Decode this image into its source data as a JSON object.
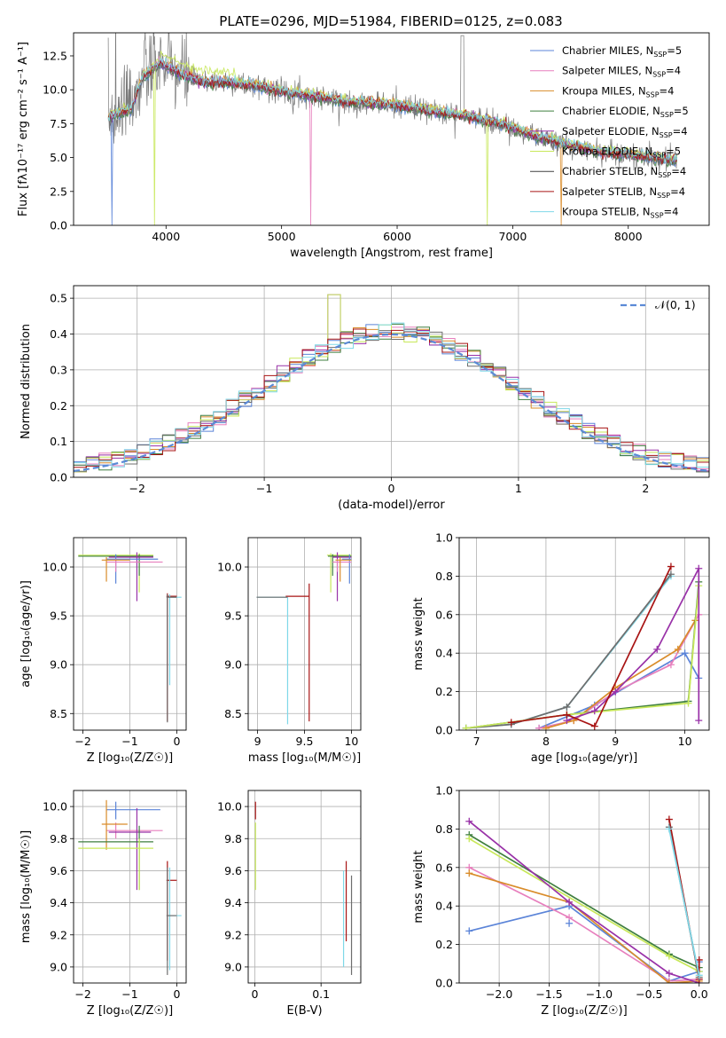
{
  "figure": {
    "title": "PLATE=0296, MJD=51984, FIBERID=0125, z=0.083"
  },
  "colors": {
    "chabrier_miles": "#5b84d8",
    "salpeter_miles": "#e77fbd",
    "kroupa_miles": "#d98c2a",
    "chabrier_elodie": "#3f7f3f",
    "salpeter_elodie": "#9932a8",
    "kroupa_elodie": "#c8e85a",
    "chabrier_stelib": "#6e6e6e",
    "salpeter_stelib": "#a81414",
    "kroupa_stelib": "#7fd8e8",
    "normal_curve": "#5b8ad6",
    "grid": "#b0b0b0",
    "data": "#808080"
  },
  "legend": [
    {
      "name": "Chabrier MILES, N",
      "sub": "SSP",
      "tail": "=5",
      "color": "#5b84d8"
    },
    {
      "name": "Salpeter MILES, N",
      "sub": "SSP",
      "tail": "=4",
      "color": "#e77fbd"
    },
    {
      "name": "Kroupa MILES, N",
      "sub": "SSP",
      "tail": "=4",
      "color": "#d98c2a"
    },
    {
      "name": "Chabrier ELODIE, N",
      "sub": "SSP",
      "tail": "=5",
      "color": "#3f7f3f"
    },
    {
      "name": "Salpeter ELODIE, N",
      "sub": "SSP",
      "tail": "=4",
      "color": "#9932a8"
    },
    {
      "name": "Kroupa ELODIE, N",
      "sub": "SSP",
      "tail": "=5",
      "color": "#c8e85a"
    },
    {
      "name": "Chabrier STELIB, N",
      "sub": "SSP",
      "tail": "=4",
      "color": "#404040"
    },
    {
      "name": "Salpeter STELIB, N",
      "sub": "SSP",
      "tail": "=4",
      "color": "#a81414"
    },
    {
      "name": "Kroupa STELIB, N",
      "sub": "SSP",
      "tail": "=4",
      "color": "#7fd8e8"
    }
  ],
  "chart_data": [
    {
      "id": "spectrum",
      "type": "line",
      "xlabel": "wavelength [Angstrom, rest frame]",
      "ylabel": "Flux [fλ10⁻¹⁷ erg cm⁻² s⁻¹ A⁻¹]",
      "xlim": [
        3200,
        8700
      ],
      "ylim": [
        0,
        14.2
      ],
      "xticks": [
        4000,
        5000,
        6000,
        7000,
        8000
      ],
      "yticks": [
        0.0,
        2.5,
        5.0,
        7.5,
        10.0,
        12.5
      ],
      "ytick_labels": [
        "0.0",
        "2.5",
        "5.0",
        "7.5",
        "10.0",
        "12.5"
      ],
      "grid": false,
      "legend_position": "upper-right",
      "continuum": [
        [
          3500,
          8.0
        ],
        [
          3700,
          8.6
        ],
        [
          3800,
          11.0
        ],
        [
          3950,
          12.0
        ],
        [
          4100,
          11.3
        ],
        [
          4300,
          10.6
        ],
        [
          4500,
          10.6
        ],
        [
          4800,
          10.3
        ],
        [
          5000,
          9.9
        ],
        [
          5300,
          9.5
        ],
        [
          5600,
          9.1
        ],
        [
          6000,
          8.9
        ],
        [
          6300,
          8.4
        ],
        [
          6600,
          8.1
        ],
        [
          6900,
          7.5
        ],
        [
          7200,
          6.6
        ],
        [
          7500,
          5.9
        ],
        [
          7800,
          5.4
        ],
        [
          8100,
          5.1
        ],
        [
          8400,
          4.8
        ]
      ]
    },
    {
      "id": "residuals",
      "type": "histogram",
      "xlabel": "(data-model)/error",
      "ylabel": "Normed distribution",
      "xlim": [
        -2.5,
        2.5
      ],
      "ylim": [
        0,
        0.535
      ],
      "xticks": [
        -2,
        -1,
        0,
        1,
        2
      ],
      "yticks": [
        0.0,
        0.1,
        0.2,
        0.3,
        0.4,
        0.5
      ],
      "ytick_labels": [
        "0.0",
        "0.1",
        "0.2",
        "0.3",
        "0.4",
        "0.5"
      ],
      "grid": true,
      "legend_position": "upper-right",
      "legend_label": "𝒩(0, 1)",
      "bin_width": 0.1,
      "normal": {
        "mean": 0,
        "sigma": 1
      }
    },
    {
      "id": "age_vs_Z",
      "type": "errorbar",
      "xlabel": "Z [log₁₀(Z/Z☉)]",
      "ylabel": "age  [log₁₀(age/yr)]",
      "xlim": [
        -2.2,
        0.2
      ],
      "ylim": [
        8.33,
        10.3
      ],
      "xticks": [
        -2,
        -1,
        0
      ],
      "yticks": [
        8.5,
        9.0,
        9.5,
        10.0
      ],
      "ytick_labels": [
        "8.5",
        "9.0",
        "9.5",
        "10.0"
      ],
      "grid": true,
      "points": [
        {
          "color": "#c8e85a",
          "x": -0.8,
          "y": 10.12,
          "xerr": [
            1.3,
            0.3
          ],
          "yerr": [
            0.38,
            0.02
          ]
        },
        {
          "color": "#3f7f3f",
          "x": -0.8,
          "y": 10.11,
          "xerr": [
            1.3,
            0.3
          ],
          "yerr": [
            0.2,
            0.02
          ]
        },
        {
          "color": "#9932a8",
          "x": -0.85,
          "y": 10.1,
          "xerr": [
            0.6,
            0.35
          ],
          "yerr": [
            0.45,
            0.05
          ]
        },
        {
          "color": "#5b84d8",
          "x": -1.3,
          "y": 10.08,
          "xerr": [
            0.2,
            0.9
          ],
          "yerr": [
            0.25,
            0.05
          ]
        },
        {
          "color": "#e77fbd",
          "x": -1.3,
          "y": 10.05,
          "xerr": [
            0.2,
            1.0
          ],
          "yerr": [
            0.1,
            0.03
          ]
        },
        {
          "color": "#d98c2a",
          "x": -1.5,
          "y": 10.07,
          "xerr": [
            0.1,
            0.5
          ],
          "yerr": [
            0.22,
            0.03
          ]
        },
        {
          "color": "#a81414",
          "x": -0.2,
          "y": 9.7,
          "xerr": [
            0.02,
            0.2
          ],
          "yerr": [
            1.28,
            0.03
          ]
        },
        {
          "color": "#7fd8e8",
          "x": -0.15,
          "y": 9.69,
          "xerr": [
            0.05,
            0.25
          ],
          "yerr": [
            0.9,
            0.03
          ]
        },
        {
          "color": "#6e6e6e",
          "x": -0.2,
          "y": 9.69,
          "xerr": [
            0.02,
            0.2
          ],
          "yerr": [
            1.28,
            0.03
          ]
        }
      ]
    },
    {
      "id": "age_vs_mass",
      "type": "errorbar",
      "xlabel": "mass [log₁₀(M/M☉)]",
      "ylabel": "",
      "xlim": [
        8.9,
        10.1
      ],
      "ylim": [
        8.33,
        10.3
      ],
      "xticks": [
        9.0,
        9.5,
        10.0
      ],
      "yticks": [
        8.5,
        9.0,
        9.5,
        10.0
      ],
      "ytick_labels": [
        "8.5",
        "9.0",
        "9.5",
        "10.0"
      ],
      "grid": true,
      "points": [
        {
          "color": "#c8e85a",
          "x": 9.78,
          "y": 10.12,
          "xerr": [
            0.04,
            0.22
          ],
          "yerr": [
            0.38,
            0.02
          ]
        },
        {
          "color": "#3f7f3f",
          "x": 9.8,
          "y": 10.11,
          "xerr": [
            0.05,
            0.2
          ],
          "yerr": [
            0.2,
            0.02
          ]
        },
        {
          "color": "#9932a8",
          "x": 9.85,
          "y": 10.1,
          "xerr": [
            0.05,
            0.15
          ],
          "yerr": [
            0.45,
            0.05
          ]
        },
        {
          "color": "#5b84d8",
          "x": 9.98,
          "y": 10.08,
          "xerr": [
            0.08,
            0.02
          ],
          "yerr": [
            0.25,
            0.05
          ]
        },
        {
          "color": "#e77fbd",
          "x": 9.85,
          "y": 10.05,
          "xerr": [
            0.05,
            0.15
          ],
          "yerr": [
            0.1,
            0.03
          ]
        },
        {
          "color": "#d98c2a",
          "x": 9.88,
          "y": 10.07,
          "xerr": [
            0.05,
            0.12
          ],
          "yerr": [
            0.22,
            0.03
          ]
        },
        {
          "color": "#a81414",
          "x": 9.55,
          "y": 9.7,
          "xerr": [
            0.25,
            0.0
          ],
          "yerr": [
            1.28,
            0.13
          ]
        },
        {
          "color": "#7fd8e8",
          "x": 9.32,
          "y": 9.69,
          "xerr": [
            0.33,
            0.0
          ],
          "yerr": [
            1.3,
            0.0
          ]
        },
        {
          "color": "#6e6e6e",
          "x": 9.32,
          "y": 9.69,
          "xerr": [
            0.33,
            0.0
          ],
          "yerr": [
            0.0,
            0.0
          ]
        }
      ]
    },
    {
      "id": "massweight_vs_age",
      "type": "line",
      "xlabel": "age  [log₁₀(age/yr)]",
      "ylabel": "mass weight",
      "xlim": [
        6.75,
        10.35
      ],
      "ylim": [
        0,
        1.0
      ],
      "xticks": [
        7,
        8,
        9,
        10
      ],
      "yticks": [
        0.0,
        0.2,
        0.4,
        0.6,
        0.8,
        1.0
      ],
      "ytick_labels": [
        "0.0",
        "0.2",
        "0.4",
        "0.6",
        "0.8",
        "1.0"
      ],
      "grid": true,
      "series": [
        {
          "color": "#7fd8e8",
          "x": [
            6.85,
            7.5,
            8.3,
            9.8
          ],
          "y": [
            0.01,
            0.03,
            0.12,
            0.8
          ]
        },
        {
          "color": "#6e6e6e",
          "x": [
            6.85,
            7.5,
            8.3,
            9.8
          ],
          "y": [
            0.01,
            0.03,
            0.12,
            0.81
          ]
        },
        {
          "color": "#5b84d8",
          "x": [
            7.9,
            8.7,
            10.0,
            10.2
          ],
          "y": [
            0.01,
            0.13,
            0.4,
            0.27
          ]
        },
        {
          "color": "#e77fbd",
          "x": [
            7.9,
            8.4,
            9.0,
            9.8,
            10.2
          ],
          "y": [
            0.01,
            0.05,
            0.2,
            0.34,
            0.6
          ]
        },
        {
          "color": "#d98c2a",
          "x": [
            8.0,
            8.4,
            9.0,
            9.9,
            10.15
          ],
          "y": [
            0.01,
            0.05,
            0.22,
            0.42,
            0.57
          ]
        },
        {
          "color": "#3f7f3f",
          "x": [
            6.85,
            8.3,
            10.05,
            10.2
          ],
          "y": [
            0.01,
            0.08,
            0.15,
            0.77
          ]
        },
        {
          "color": "#c8e85a",
          "x": [
            6.85,
            8.3,
            10.05,
            10.2
          ],
          "y": [
            0.01,
            0.08,
            0.14,
            0.75
          ]
        },
        {
          "color": "#9932a8",
          "x": [
            8.3,
            8.7,
            9.0,
            9.6,
            10.2,
            10.2
          ],
          "y": [
            0.05,
            0.1,
            0.2,
            0.42,
            0.84,
            0.05
          ]
        },
        {
          "color": "#a81414",
          "x": [
            7.5,
            8.3,
            8.7,
            9.8
          ],
          "y": [
            0.04,
            0.08,
            0.02,
            0.85
          ]
        }
      ]
    },
    {
      "id": "mass_vs_Z",
      "type": "errorbar",
      "xlabel": "Z [log₁₀(Z/Z☉)]",
      "ylabel": "mass [log₁₀(M/M☉)]",
      "xlim": [
        -2.2,
        0.2
      ],
      "ylim": [
        8.9,
        10.1
      ],
      "xticks": [
        -2,
        -1,
        0
      ],
      "yticks": [
        9.0,
        9.2,
        9.4,
        9.6,
        9.8,
        10.0
      ],
      "ytick_labels": [
        "9.0",
        "9.2",
        "9.4",
        "9.6",
        "9.8",
        "10.0"
      ],
      "grid": true,
      "points": [
        {
          "color": "#5b84d8",
          "x": -1.3,
          "y": 9.98,
          "xerr": [
            0.2,
            0.95
          ],
          "yerr": [
            0.06,
            0.05
          ]
        },
        {
          "color": "#e77fbd",
          "x": -1.3,
          "y": 9.85,
          "xerr": [
            0.2,
            1.0
          ],
          "yerr": [
            0.05,
            0.05
          ]
        },
        {
          "color": "#d98c2a",
          "x": -1.5,
          "y": 9.89,
          "xerr": [
            0.1,
            0.45
          ],
          "yerr": [
            0.16,
            0.15
          ]
        },
        {
          "color": "#9932a8",
          "x": -0.85,
          "y": 9.84,
          "xerr": [
            0.6,
            0.3
          ],
          "yerr": [
            0.36,
            0.15
          ]
        },
        {
          "color": "#3f7f3f",
          "x": -0.8,
          "y": 9.78,
          "xerr": [
            1.3,
            0.3
          ],
          "yerr": [
            0.3,
            0.1
          ]
        },
        {
          "color": "#c8e85a",
          "x": -0.8,
          "y": 9.74,
          "xerr": [
            1.3,
            0.3
          ],
          "yerr": [
            0.26,
            0.06
          ]
        },
        {
          "color": "#a81414",
          "x": -0.2,
          "y": 9.54,
          "xerr": [
            0.02,
            0.2
          ],
          "yerr": [
            0.5,
            0.12
          ]
        },
        {
          "color": "#7fd8e8",
          "x": -0.15,
          "y": 9.32,
          "xerr": [
            0.05,
            0.25
          ],
          "yerr": [
            0.34,
            0.3
          ]
        },
        {
          "color": "#6e6e6e",
          "x": -0.2,
          "y": 9.32,
          "xerr": [
            0.02,
            0.2
          ],
          "yerr": [
            0.37,
            0.3
          ]
        }
      ]
    },
    {
      "id": "mass_vs_ebv",
      "type": "errorbar",
      "xlabel": "E(B-V)",
      "ylabel": "",
      "xlim": [
        -0.01,
        0.16
      ],
      "ylim": [
        8.9,
        10.1
      ],
      "xticks": [
        0.0,
        0.1
      ],
      "yticks": [
        9.0,
        9.2,
        9.4,
        9.6,
        9.8,
        10.0
      ],
      "ytick_labels": [
        "9.0",
        "9.2",
        "9.4",
        "9.6",
        "9.8",
        "10.0"
      ],
      "grid": true,
      "points": [
        {
          "color": "#a81414",
          "x": 0.001,
          "y": 9.98,
          "xerr": [
            0,
            0
          ],
          "yerr": [
            0.06,
            0.05
          ]
        },
        {
          "color": "#c8e85a",
          "x": 0.001,
          "y": 9.74,
          "xerr": [
            0,
            0
          ],
          "yerr": [
            0.26,
            0.16
          ]
        },
        {
          "color": "#a81414",
          "x": 0.138,
          "y": 9.4,
          "xerr": [
            0,
            0
          ],
          "yerr": [
            0.24,
            0.26
          ]
        },
        {
          "color": "#7fd8e8",
          "x": 0.134,
          "y": 9.3,
          "xerr": [
            0,
            0
          ],
          "yerr": [
            0.3,
            0.3
          ]
        },
        {
          "color": "#6e6e6e",
          "x": 0.146,
          "y": 9.25,
          "xerr": [
            0,
            0
          ],
          "yerr": [
            0.3,
            0.32
          ]
        }
      ]
    },
    {
      "id": "massweight_vs_Z",
      "type": "line",
      "xlabel": "Z [log₁₀(Z/Z☉)]",
      "ylabel": "mass weight",
      "xlim": [
        -2.4,
        0.1
      ],
      "ylim": [
        0,
        1.0
      ],
      "xticks": [
        -2.0,
        -1.5,
        -1.0,
        -0.5,
        0.0
      ],
      "xtick_labels": [
        "−2.0",
        "−1.5",
        "−1.0",
        "−0.5",
        "0.0"
      ],
      "yticks": [
        0.0,
        0.2,
        0.4,
        0.6,
        0.8,
        1.0
      ],
      "ytick_labels": [
        "0.0",
        "0.2",
        "0.4",
        "0.6",
        "0.8",
        "1.0"
      ],
      "grid": true,
      "series": [
        {
          "color": "#5b84d8",
          "x": [
            -2.3,
            -1.3,
            -0.3,
            0.0,
            0.0
          ],
          "y": [
            0.27,
            0.4,
            0.01,
            0.06,
            0.11
          ]
        },
        {
          "color": "#e77fbd",
          "x": [
            -2.3,
            -1.3,
            -0.3,
            0.0
          ],
          "y": [
            0.6,
            0.34,
            0.01,
            0.02
          ]
        },
        {
          "color": "#d98c2a",
          "x": [
            -2.3,
            -1.3,
            -0.3,
            0.0
          ],
          "y": [
            0.57,
            0.42,
            0.0,
            0.01
          ]
        },
        {
          "color": "#3f7f3f",
          "x": [
            -2.3,
            -0.3,
            0.0
          ],
          "y": [
            0.77,
            0.15,
            0.08
          ]
        },
        {
          "color": "#c8e85a",
          "x": [
            -2.3,
            -0.3,
            0.0
          ],
          "y": [
            0.75,
            0.14,
            0.06
          ]
        },
        {
          "color": "#9932a8",
          "x": [
            -2.3,
            -1.3,
            -0.3,
            0.0
          ],
          "y": [
            0.84,
            0.42,
            0.05,
            0.0
          ]
        },
        {
          "color": "#a81414",
          "x": [
            -0.3,
            0.0,
            0.0
          ],
          "y": [
            0.85,
            0.02,
            0.12
          ]
        },
        {
          "color": "#6e6e6e",
          "x": [
            -0.3,
            0.0
          ],
          "y": [
            0.81,
            0.03
          ]
        },
        {
          "color": "#7fd8e8",
          "x": [
            -0.3,
            0.0
          ],
          "y": [
            0.8,
            0.04
          ]
        },
        {
          "color": "#5b84d8",
          "x": [
            -1.3
          ],
          "y": [
            0.31
          ]
        }
      ]
    }
  ]
}
